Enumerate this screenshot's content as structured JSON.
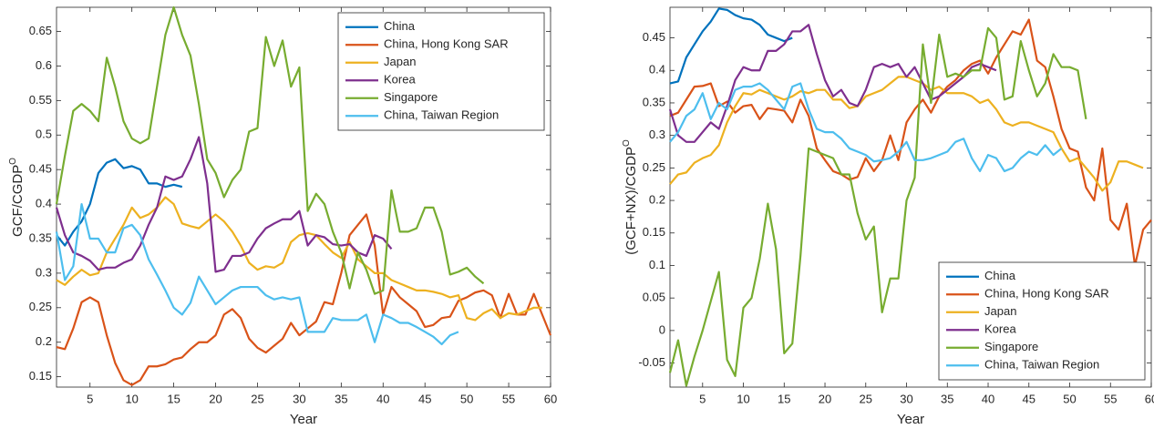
{
  "chart_data": [
    {
      "type": "line",
      "xlabel": "Year",
      "ylabel": "GCF/CGDP",
      "ylabel_superscript": "O",
      "xlim": [
        1,
        60
      ],
      "xticks": [
        5,
        10,
        15,
        20,
        25,
        30,
        35,
        40,
        45,
        50,
        55,
        60
      ],
      "ylim": [
        0.135,
        0.685
      ],
      "yticks": [
        0.15,
        0.2,
        0.25,
        0.3,
        0.35,
        0.4,
        0.45,
        0.5,
        0.55,
        0.6,
        0.65
      ],
      "legend": "upper right",
      "x": [
        1,
        2,
        3,
        4,
        5,
        6,
        7,
        8,
        9,
        10,
        11,
        12,
        13,
        14,
        15,
        16,
        17,
        18,
        19,
        20,
        21,
        22,
        23,
        24,
        25,
        26,
        27,
        28,
        29,
        30,
        31,
        32,
        33,
        34,
        35,
        36,
        37,
        38,
        39,
        40,
        41,
        42,
        43,
        44,
        45,
        46,
        47,
        48,
        49,
        50,
        51,
        52,
        53,
        54,
        55,
        56,
        57,
        58,
        59,
        60
      ],
      "series": [
        {
          "name": "China",
          "color": "#0072BD",
          "values": [
            0.355,
            0.34,
            0.36,
            0.375,
            0.4,
            0.445,
            0.46,
            0.465,
            0.452,
            0.455,
            0.45,
            0.43,
            0.43,
            0.425,
            0.428,
            0.425,
            null,
            null,
            null,
            null,
            null,
            null,
            null,
            null,
            null,
            null,
            null,
            null,
            null,
            null,
            null,
            null,
            null,
            null,
            null,
            null,
            null,
            null,
            null,
            null,
            null,
            null,
            null,
            null,
            null,
            null,
            null,
            null,
            null,
            null,
            null,
            null,
            null,
            null,
            null,
            null,
            null,
            null,
            null,
            null
          ]
        },
        {
          "name": "China, Hong Kong SAR",
          "color": "#D95319",
          "values": [
            0.193,
            0.19,
            0.22,
            0.258,
            0.265,
            0.258,
            0.21,
            0.17,
            0.145,
            0.138,
            0.145,
            0.165,
            0.165,
            0.168,
            0.175,
            0.178,
            0.19,
            0.2,
            0.2,
            0.21,
            0.24,
            0.248,
            0.235,
            0.205,
            0.192,
            0.185,
            0.195,
            0.205,
            0.228,
            0.21,
            0.22,
            0.23,
            0.258,
            0.255,
            0.3,
            0.355,
            0.37,
            0.385,
            0.34,
            0.24,
            0.28,
            0.265,
            0.255,
            0.245,
            0.222,
            0.225,
            0.235,
            0.237,
            0.26,
            0.265,
            0.272,
            0.275,
            0.268,
            0.235,
            0.27,
            0.24,
            0.24,
            0.27,
            0.24,
            0.21
          ]
        },
        {
          "name": "Japan",
          "color": "#EDB120",
          "values": [
            0.29,
            0.283,
            0.295,
            0.305,
            0.297,
            0.3,
            0.33,
            0.35,
            0.37,
            0.395,
            0.38,
            0.385,
            0.395,
            0.41,
            0.4,
            0.372,
            0.368,
            0.365,
            0.375,
            0.385,
            0.375,
            0.36,
            0.34,
            0.315,
            0.305,
            0.31,
            0.308,
            0.315,
            0.345,
            0.355,
            0.358,
            0.355,
            0.342,
            0.33,
            0.322,
            0.345,
            0.32,
            0.31,
            0.3,
            0.3,
            0.29,
            0.285,
            0.28,
            0.275,
            0.275,
            0.273,
            0.27,
            0.265,
            0.268,
            0.235,
            0.232,
            0.242,
            0.248,
            0.235,
            0.242,
            0.24,
            0.245,
            0.25,
            0.25,
            null
          ]
        },
        {
          "name": "Korea",
          "color": "#7E2F8E",
          "values": [
            0.395,
            0.355,
            0.33,
            0.325,
            0.318,
            0.305,
            0.308,
            0.308,
            0.315,
            0.32,
            0.34,
            0.37,
            0.395,
            0.44,
            0.435,
            0.44,
            0.465,
            0.497,
            0.43,
            0.302,
            0.305,
            0.325,
            0.325,
            0.33,
            0.35,
            0.365,
            0.372,
            0.378,
            0.378,
            0.39,
            0.34,
            0.355,
            0.352,
            0.342,
            0.34,
            0.342,
            0.33,
            0.325,
            0.355,
            0.35,
            0.335,
            null,
            null,
            null,
            null,
            null,
            null,
            null,
            null,
            null,
            null,
            null,
            null,
            null,
            null,
            null,
            null,
            null,
            null,
            null
          ]
        },
        {
          "name": "Singapore",
          "color": "#77AC30",
          "values": [
            0.4,
            0.47,
            0.535,
            0.545,
            0.535,
            0.52,
            0.612,
            0.57,
            0.52,
            0.495,
            0.488,
            0.495,
            0.57,
            0.645,
            0.685,
            0.645,
            0.615,
            0.545,
            0.465,
            0.445,
            0.41,
            0.435,
            0.45,
            0.505,
            0.51,
            0.642,
            0.6,
            0.637,
            0.57,
            0.598,
            0.39,
            0.415,
            0.4,
            0.36,
            0.33,
            0.278,
            0.33,
            0.305,
            0.27,
            0.275,
            0.42,
            0.36,
            0.36,
            0.365,
            0.395,
            0.395,
            0.36,
            0.298,
            0.302,
            0.308,
            0.295,
            0.285,
            null,
            null,
            null,
            null,
            null,
            null,
            null,
            null
          ]
        },
        {
          "name": "China, Taiwan Region",
          "color": "#4DBEEE",
          "values": [
            0.36,
            0.29,
            0.31,
            0.4,
            0.35,
            0.35,
            0.33,
            0.33,
            0.365,
            0.37,
            0.355,
            0.32,
            0.298,
            0.275,
            0.25,
            0.24,
            0.257,
            0.295,
            0.275,
            0.255,
            0.265,
            0.275,
            0.28,
            0.28,
            0.28,
            0.268,
            0.262,
            0.265,
            0.262,
            0.265,
            0.215,
            0.215,
            0.215,
            0.235,
            0.232,
            0.232,
            0.232,
            0.24,
            0.2,
            0.24,
            0.235,
            0.228,
            0.228,
            0.222,
            0.215,
            0.208,
            0.197,
            0.21,
            0.215,
            null,
            null,
            null,
            null,
            null,
            null,
            null,
            null,
            null,
            null,
            null
          ]
        }
      ]
    },
    {
      "type": "line",
      "xlabel": "Year",
      "ylabel": "(GCF+NX)/CGDP",
      "ylabel_superscript": "O",
      "xlim": [
        1,
        60
      ],
      "xticks": [
        5,
        10,
        15,
        20,
        25,
        30,
        35,
        40,
        45,
        50,
        55,
        60
      ],
      "ylim": [
        -0.087,
        0.497
      ],
      "yticks": [
        -0.05,
        0,
        0.05,
        0.1,
        0.15,
        0.2,
        0.25,
        0.3,
        0.35,
        0.4,
        0.45
      ],
      "legend": "lower right",
      "x": [
        1,
        2,
        3,
        4,
        5,
        6,
        7,
        8,
        9,
        10,
        11,
        12,
        13,
        14,
        15,
        16,
        17,
        18,
        19,
        20,
        21,
        22,
        23,
        24,
        25,
        26,
        27,
        28,
        29,
        30,
        31,
        32,
        33,
        34,
        35,
        36,
        37,
        38,
        39,
        40,
        41,
        42,
        43,
        44,
        45,
        46,
        47,
        48,
        49,
        50,
        51,
        52,
        53,
        54,
        55,
        56,
        57,
        58,
        59,
        60
      ],
      "series": [
        {
          "name": "China",
          "color": "#0072BD",
          "values": [
            0.38,
            0.383,
            0.42,
            0.44,
            0.46,
            0.475,
            0.495,
            0.493,
            0.485,
            0.48,
            0.478,
            0.47,
            0.455,
            0.45,
            0.445,
            0.45,
            null,
            null,
            null,
            null,
            null,
            null,
            null,
            null,
            null,
            null,
            null,
            null,
            null,
            null,
            null,
            null,
            null,
            null,
            null,
            null,
            null,
            null,
            null,
            null,
            null,
            null,
            null,
            null,
            null,
            null,
            null,
            null,
            null,
            null,
            null,
            null,
            null,
            null,
            null,
            null,
            null,
            null,
            null,
            null
          ]
        },
        {
          "name": "China, Hong Kong SAR",
          "color": "#D95319",
          "values": [
            0.33,
            0.335,
            0.355,
            0.375,
            0.376,
            0.38,
            0.345,
            0.352,
            0.335,
            0.345,
            0.347,
            0.325,
            0.342,
            0.34,
            0.338,
            0.32,
            0.355,
            0.33,
            0.28,
            0.262,
            0.245,
            0.24,
            0.232,
            0.236,
            0.265,
            0.245,
            0.262,
            0.3,
            0.262,
            0.32,
            0.34,
            0.355,
            0.335,
            0.36,
            0.375,
            0.385,
            0.4,
            0.41,
            0.415,
            0.395,
            0.42,
            0.44,
            0.46,
            0.455,
            0.478,
            0.415,
            0.405,
            0.36,
            0.31,
            0.28,
            0.275,
            0.22,
            0.2,
            0.28,
            0.17,
            0.155,
            0.195,
            0.1,
            0.155,
            0.17
          ]
        },
        {
          "name": "Japan",
          "color": "#EDB120",
          "values": [
            0.225,
            0.24,
            0.243,
            0.258,
            0.265,
            0.27,
            0.285,
            0.32,
            0.345,
            0.365,
            0.363,
            0.37,
            0.365,
            0.36,
            0.355,
            0.36,
            0.368,
            0.365,
            0.37,
            0.37,
            0.355,
            0.355,
            0.342,
            0.345,
            0.36,
            0.365,
            0.37,
            0.38,
            0.39,
            0.39,
            0.385,
            0.38,
            0.37,
            0.375,
            0.365,
            0.365,
            0.365,
            0.36,
            0.35,
            0.355,
            0.34,
            0.32,
            0.315,
            0.32,
            0.32,
            0.315,
            0.31,
            0.305,
            0.28,
            0.26,
            0.265,
            0.25,
            0.235,
            0.215,
            0.228,
            0.26,
            0.26,
            0.255,
            0.25,
            null
          ]
        },
        {
          "name": "Korea",
          "color": "#7E2F8E",
          "values": [
            0.34,
            0.3,
            0.29,
            0.29,
            0.305,
            0.32,
            0.31,
            0.345,
            0.385,
            0.405,
            0.4,
            0.4,
            0.43,
            0.43,
            0.44,
            0.46,
            0.46,
            0.47,
            0.425,
            0.385,
            0.36,
            0.37,
            0.35,
            0.345,
            0.37,
            0.405,
            0.41,
            0.405,
            0.41,
            0.39,
            0.405,
            0.38,
            0.355,
            0.36,
            0.37,
            0.38,
            0.39,
            0.405,
            0.41,
            0.405,
            0.4,
            null,
            null,
            null,
            null,
            null,
            null,
            null,
            null,
            null,
            null,
            null,
            null,
            null,
            null,
            null,
            null,
            null,
            null,
            null
          ]
        },
        {
          "name": "Singapore",
          "color": "#77AC30",
          "values": [
            -0.065,
            -0.015,
            -0.085,
            -0.04,
            0.0,
            0.045,
            0.09,
            -0.045,
            -0.07,
            0.035,
            0.05,
            0.11,
            0.195,
            0.125,
            -0.035,
            -0.02,
            0.115,
            0.28,
            0.275,
            0.27,
            0.265,
            0.24,
            0.24,
            0.18,
            0.14,
            0.16,
            0.028,
            0.08,
            0.08,
            0.2,
            0.235,
            0.44,
            0.35,
            0.455,
            0.39,
            0.395,
            0.39,
            0.4,
            0.4,
            0.465,
            0.45,
            0.355,
            0.36,
            0.445,
            0.4,
            0.36,
            0.38,
            0.425,
            0.405,
            0.405,
            0.4,
            0.325,
            null,
            null,
            null,
            null,
            null,
            null,
            null,
            null
          ]
        },
        {
          "name": "China, Taiwan Region",
          "color": "#4DBEEE",
          "values": [
            0.29,
            0.305,
            0.33,
            0.34,
            0.365,
            0.325,
            0.35,
            0.34,
            0.37,
            0.375,
            0.375,
            0.38,
            0.37,
            0.355,
            0.34,
            0.375,
            0.38,
            0.34,
            0.31,
            0.305,
            0.305,
            0.295,
            0.28,
            0.275,
            0.27,
            0.26,
            0.262,
            0.265,
            0.275,
            0.29,
            0.262,
            0.262,
            0.265,
            0.27,
            0.275,
            0.29,
            0.295,
            0.265,
            0.245,
            0.27,
            0.265,
            0.245,
            0.25,
            0.265,
            0.275,
            0.27,
            0.285,
            0.27,
            0.28,
            null,
            null,
            null,
            null,
            null,
            null,
            null,
            null,
            null,
            null,
            null
          ]
        }
      ]
    }
  ]
}
